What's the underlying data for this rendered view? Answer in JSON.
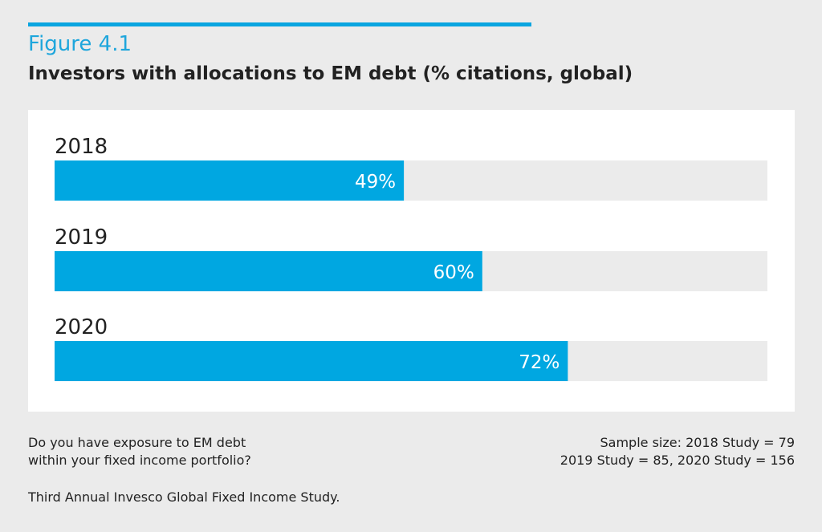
{
  "figure_label": "Figure 4.1",
  "colors": {
    "bar": "#00a7e1",
    "track": "#ebebeb",
    "accent": "#0aa5e0"
  },
  "chart_data": {
    "type": "bar",
    "orientation": "horizontal",
    "title": "Investors with allocations to EM debt (% citations, global)",
    "categories": [
      "2018",
      "2019",
      "2020"
    ],
    "values": [
      49,
      60,
      72
    ],
    "data_labels": [
      "49%",
      "60%",
      "72%"
    ],
    "xlim": [
      0,
      100
    ],
    "grid": false
  },
  "footer": {
    "question_line1": "Do you have exposure to EM debt",
    "question_line2": "within your fixed income portfolio?",
    "sample_line1": "Sample size: 2018 Study = 79",
    "sample_line2": "2019 Study = 85, 2020 Study = 156",
    "source": "Third Annual Invesco Global Fixed Income Study."
  }
}
